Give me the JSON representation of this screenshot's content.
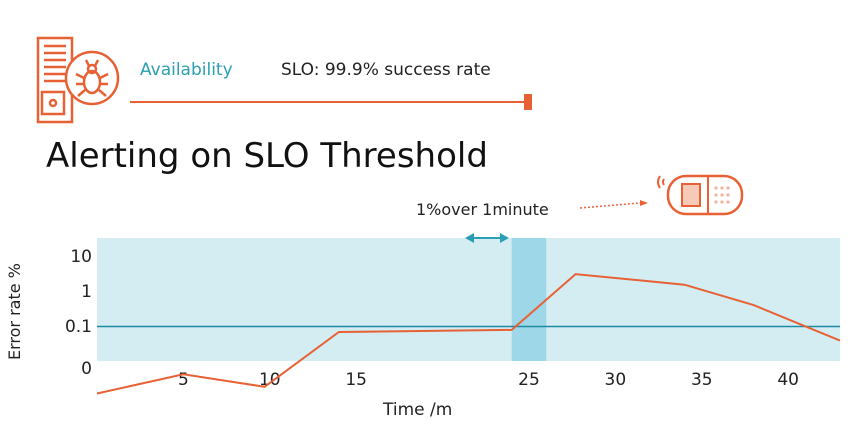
{
  "header": {
    "icon": "server-bug-icon",
    "availability_label": "Availability",
    "slo_label": "SLO: 99.9% success rate"
  },
  "title": "Alerting on SLO Threshold",
  "window": {
    "label": "1%over 1minute",
    "icon": "pager-icon"
  },
  "colors": {
    "accent": "#e86134",
    "teal": "#2a9fb3",
    "plot_bg": "#d3edf3",
    "window_band": "#9dd7e8"
  },
  "chart_data": {
    "type": "line",
    "xlabel": "Time /m",
    "ylabel": "Error rate %",
    "x_ticks": [
      5,
      10,
      15,
      25,
      30,
      35,
      40
    ],
    "y_ticks": [
      "0",
      "0.1",
      "1",
      "10"
    ],
    "y_scale": "log",
    "xlim": [
      0,
      43
    ],
    "threshold": 0.1,
    "window_minutes": [
      24,
      26
    ],
    "series": [
      {
        "x": [
          0,
          5,
          9.7,
          14,
          24,
          27.7,
          34,
          38,
          43
        ],
        "y": [
          0.0013,
          0.0045,
          0.002,
          0.07,
          0.08,
          3,
          1.5,
          0.4,
          0.04
        ]
      }
    ],
    "grid": false
  }
}
